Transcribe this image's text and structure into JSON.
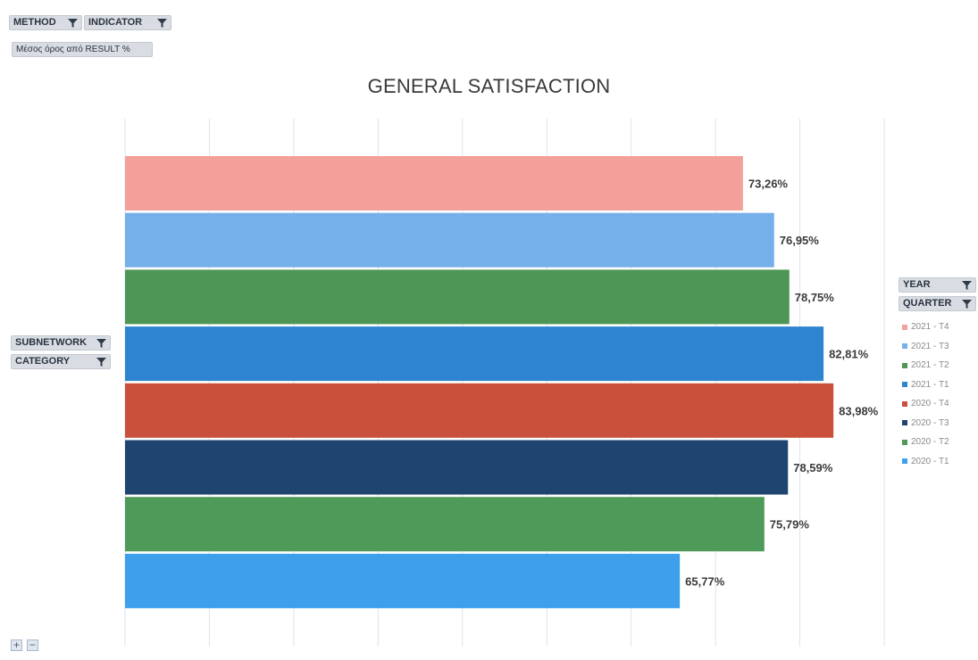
{
  "filters": {
    "method": "METHOD",
    "indicator": "INDICATOR",
    "measure": "Μέσος όρος από RESULT %",
    "subnetwork": "SUBNETWORK",
    "category": "CATEGORY",
    "year": "YEAR",
    "quarter": "QUARTER"
  },
  "icons": {
    "filter": "filter-icon",
    "zoom_in": "+",
    "zoom_out": "−"
  },
  "chart_data": {
    "type": "bar",
    "orientation": "horizontal",
    "title": "GENERAL SATISFACTION",
    "xlabel": "",
    "ylabel": "",
    "xlim": [
      0,
      90
    ],
    "grid": true,
    "legend_position": "right",
    "series": [
      {
        "name": "2021 - T4",
        "value": 73.26,
        "label": "73,26%",
        "color": "#f4a09a"
      },
      {
        "name": "2021 - T3",
        "value": 76.95,
        "label": "76,95%",
        "color": "#76b0ea"
      },
      {
        "name": "2021 - T2",
        "value": 78.75,
        "label": "78,75%",
        "color": "#4e9656"
      },
      {
        "name": "2021 - T1",
        "value": 82.81,
        "label": "82,81%",
        "color": "#2e84d0"
      },
      {
        "name": "2020 - T4",
        "value": 83.98,
        "label": "83,98%",
        "color": "#c9503a"
      },
      {
        "name": "2020 - T3",
        "value": 78.59,
        "label": "78,59%",
        "color": "#1f4470"
      },
      {
        "name": "2020 - T2",
        "value": 75.79,
        "label": "75,79%",
        "color": "#4e9a59"
      },
      {
        "name": "2020 - T1",
        "value": 65.77,
        "label": "65,77%",
        "color": "#3ea0ec"
      }
    ]
  }
}
